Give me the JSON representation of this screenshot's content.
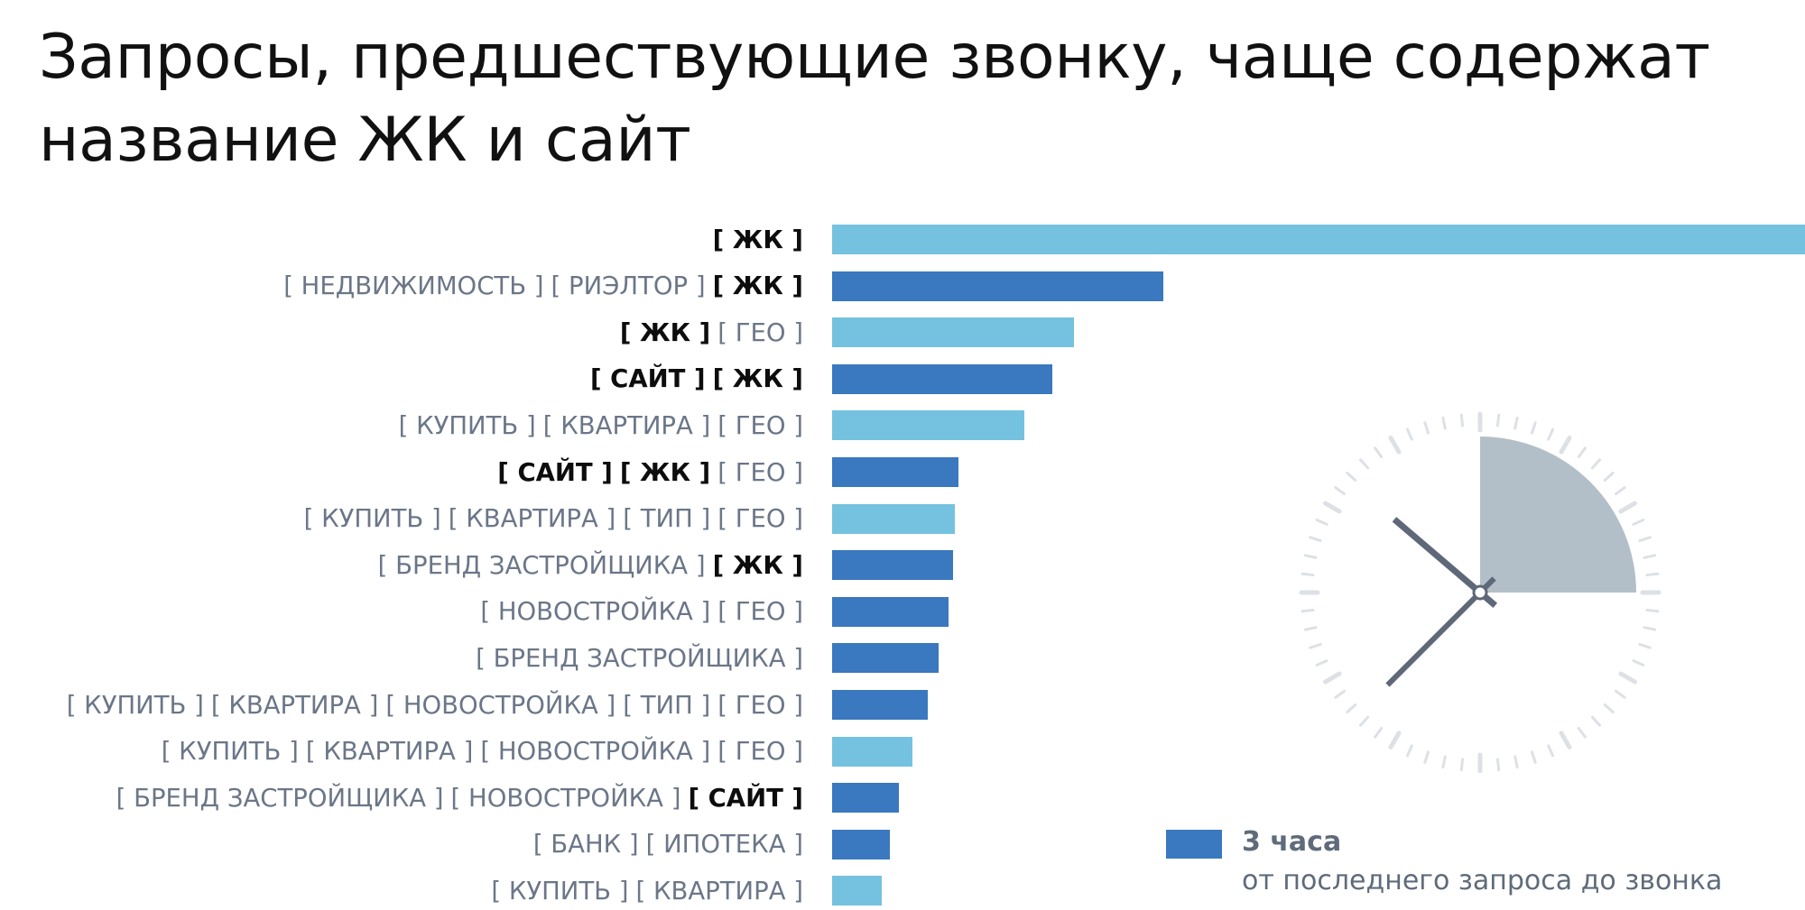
{
  "title": "Запросы, предшествующие звонку, чаще содержат\nназвание ЖК и сайт",
  "colors": {
    "dark_blue": "#3a78bf",
    "light_blue": "#74c2df",
    "sector": "#b3bfc8",
    "hands": "#5e6878",
    "ticks": "#dde1e5"
  },
  "chart_data": {
    "type": "bar",
    "orientation": "horizontal",
    "categories": [
      "[ ЖК ]",
      "[ НЕДВИЖИМОСТЬ ] [ РИЭЛТОР ] [ ЖК ]",
      "[ ЖК ] [ ГЕО ]",
      "[ САЙТ ] [ ЖК ]",
      "[ КУПИТЬ ] [ КВАРТИРА ] [ ГЕО ]",
      "[ САЙТ ] [ ЖК ] [ ГЕО ]",
      "[ КУПИТЬ ] [ КВАРТИРА ] [ ТИП ] [ ГЕО ]",
      "[ БРЕНД ЗАСТРОЙЩИКА ] [ ЖК ]",
      "[ НОВОСТРОЙКА ] [ ГЕО ]",
      "[ БРЕНД ЗАСТРОЙЩИКА ]",
      "[ КУПИТЬ ] [ КВАРТИРА ] [ НОВОСТРОЙКА ] [ ТИП ] [ ГЕО ]",
      "[ КУПИТЬ ] [ КВАРТИРА ] [ НОВОСТРОЙКА ] [ ГЕО ]",
      "[ БРЕНД ЗАСТРОЙЩИКА ] [ НОВОСТРОЙКА ] [ САЙТ ]",
      "[ БАНК ] [ ИПОТЕКА ]",
      "[ КУПИТЬ ] [ КВАРТИРА ]"
    ],
    "rows": [
      {
        "tokens": [
          {
            "text": "[ ЖК ]",
            "bold": true
          }
        ],
        "value": 100,
        "shade": "light"
      },
      {
        "tokens": [
          {
            "text": "[ НЕДВИЖИМОСТЬ ]",
            "bold": false
          },
          {
            "text": "[ РИЭЛТОР ]",
            "bold": false
          },
          {
            "text": "[ ЖК ]",
            "bold": true
          }
        ],
        "value": 34,
        "shade": "dark"
      },
      {
        "tokens": [
          {
            "text": "[ ЖК ]",
            "bold": true
          },
          {
            "text": "[ ГЕО ]",
            "bold": false
          }
        ],
        "value": 24.9,
        "shade": "light"
      },
      {
        "tokens": [
          {
            "text": "[ САЙТ ]",
            "bold": true
          },
          {
            "text": "[ ЖК ]",
            "bold": true
          }
        ],
        "value": 22.6,
        "shade": "dark"
      },
      {
        "tokens": [
          {
            "text": "[ КУПИТЬ ]",
            "bold": false
          },
          {
            "text": "[ КВАРТИРА ]",
            "bold": false
          },
          {
            "text": "[ ГЕО ]",
            "bold": false
          }
        ],
        "value": 19.8,
        "shade": "light"
      },
      {
        "tokens": [
          {
            "text": "[ САЙТ ]",
            "bold": true
          },
          {
            "text": "[ ЖК ]",
            "bold": true
          },
          {
            "text": "[ ГЕО ]",
            "bold": false
          }
        ],
        "value": 13,
        "shade": "dark"
      },
      {
        "tokens": [
          {
            "text": "[ КУПИТЬ ]",
            "bold": false
          },
          {
            "text": "[ КВАРТИРА ]",
            "bold": false
          },
          {
            "text": "[ ТИП ]",
            "bold": false
          },
          {
            "text": "[ ГЕО ]",
            "bold": false
          }
        ],
        "value": 12.6,
        "shade": "light"
      },
      {
        "tokens": [
          {
            "text": "[ БРЕНД ЗАСТРОЙЩИКА ]",
            "bold": false
          },
          {
            "text": "[ ЖК ]",
            "bold": true
          }
        ],
        "value": 12.4,
        "shade": "dark"
      },
      {
        "tokens": [
          {
            "text": "[ НОВОСТРОЙКА ]",
            "bold": false
          },
          {
            "text": "[ ГЕО ]",
            "bold": false
          }
        ],
        "value": 12,
        "shade": "dark"
      },
      {
        "tokens": [
          {
            "text": "[ БРЕНД ЗАСТРОЙЩИКА ]",
            "bold": false
          }
        ],
        "value": 10.9,
        "shade": "dark"
      },
      {
        "tokens": [
          {
            "text": "[ КУПИТЬ ]",
            "bold": false
          },
          {
            "text": "[ КВАРТИРА ]",
            "bold": false
          },
          {
            "text": "[ НОВОСТРОЙКА ]",
            "bold": false
          },
          {
            "text": "[ ТИП ]",
            "bold": false
          },
          {
            "text": "[ ГЕО ]",
            "bold": false
          }
        ],
        "value": 9.8,
        "shade": "dark"
      },
      {
        "tokens": [
          {
            "text": "[ КУПИТЬ ]",
            "bold": false
          },
          {
            "text": "[ КВАРТИРА ]",
            "bold": false
          },
          {
            "text": "[ НОВОСТРОЙКА ]",
            "bold": false
          },
          {
            "text": "[ ГЕО ]",
            "bold": false
          }
        ],
        "value": 8.3,
        "shade": "light"
      },
      {
        "tokens": [
          {
            "text": "[ БРЕНД ЗАСТРОЙЩИКА ]",
            "bold": false
          },
          {
            "text": "[ НОВОСТРОЙКА ]",
            "bold": false
          },
          {
            "text": "[ САЙТ ]",
            "bold": true
          }
        ],
        "value": 6.9,
        "shade": "dark"
      },
      {
        "tokens": [
          {
            "text": "[ БАНК ]",
            "bold": false
          },
          {
            "text": "[ ИПОТЕКА ]",
            "bold": false
          }
        ],
        "value": 5.9,
        "shade": "dark"
      },
      {
        "tokens": [
          {
            "text": "[ КУПИТЬ ]",
            "bold": false
          },
          {
            "text": "[ КВАРТИРА ]",
            "bold": false
          }
        ],
        "value": 5.1,
        "shade": "light"
      }
    ],
    "xlim": [
      0,
      100
    ],
    "grid": false,
    "legend": {
      "position": "bottom-right",
      "title": "3 часа",
      "subtitle": "от последнего запроса до звонка"
    }
  },
  "clock": {
    "highlighted_hours": 3,
    "hour_hand_hour": 10.35,
    "minute_hand_minute": 37.5
  }
}
